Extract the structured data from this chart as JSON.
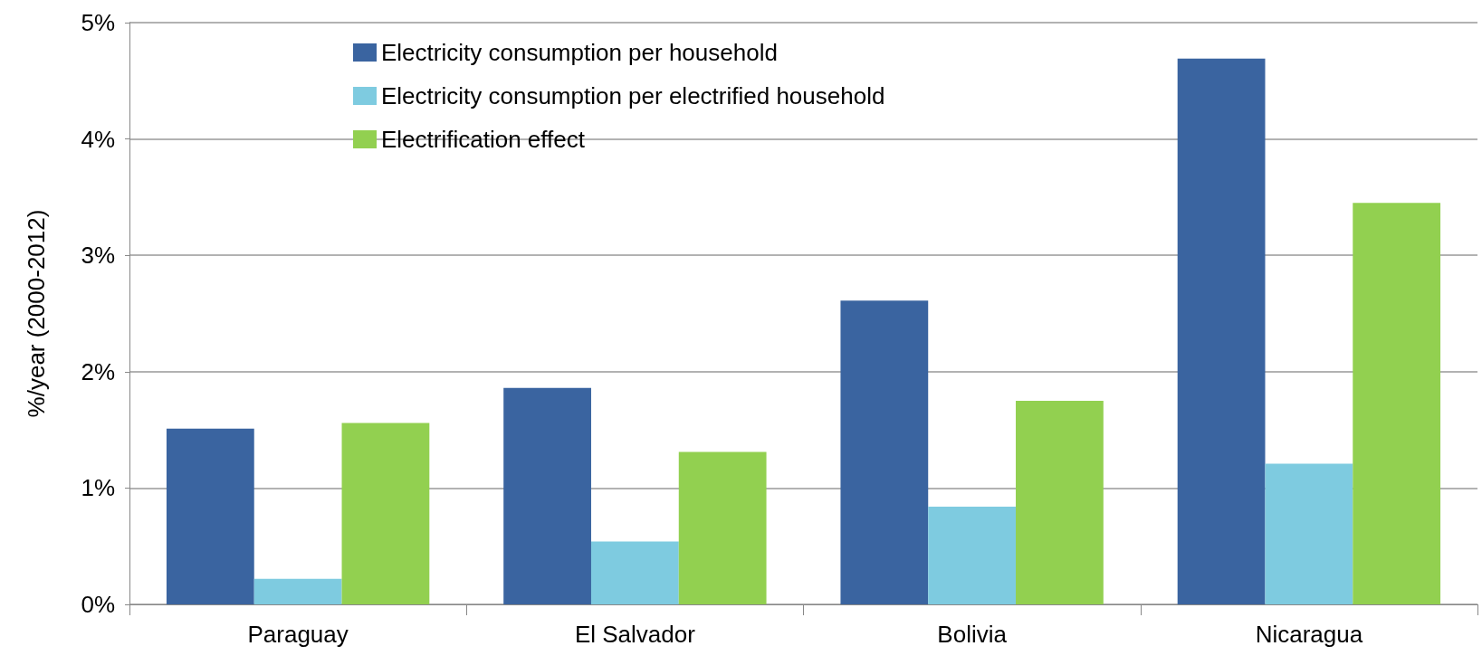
{
  "chart_data": {
    "type": "bar",
    "ylabel": "%/year (2000-2012)",
    "categories": [
      "Paraguay",
      "El Salvador",
      "Bolivia",
      "Nicaragua"
    ],
    "series": [
      {
        "name": "Electricity consumption per household",
        "color": "#3a64a0",
        "values": [
          1.51,
          1.86,
          2.61,
          4.69
        ]
      },
      {
        "name": "Electricity consumption per electrified household",
        "color": "#7ecbe0",
        "values": [
          0.22,
          0.54,
          0.84,
          1.21
        ]
      },
      {
        "name": "Electrification effect",
        "color": "#92d050",
        "values": [
          1.56,
          1.31,
          1.75,
          3.45
        ]
      }
    ],
    "ylim": [
      0,
      5
    ],
    "yticks": [
      {
        "value": 0,
        "label": "0%"
      },
      {
        "value": 1,
        "label": "1%"
      },
      {
        "value": 2,
        "label": "2%"
      },
      {
        "value": 3,
        "label": "3%"
      },
      {
        "value": 4,
        "label": "4%"
      },
      {
        "value": 5,
        "label": "5%"
      }
    ],
    "grid": "y",
    "legend": "top left"
  }
}
